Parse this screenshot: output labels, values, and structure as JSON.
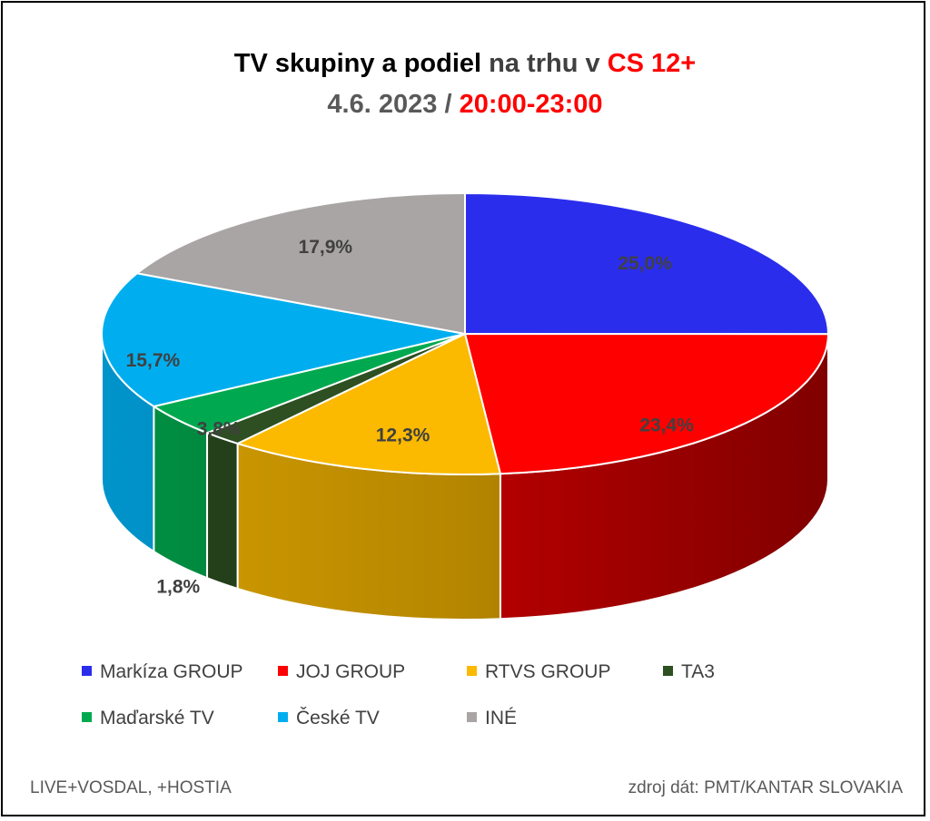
{
  "title": {
    "part1": "TV skupiny a podiel",
    "part2": "na trhu v",
    "part3": "CS 12+",
    "date": "4.6. 2023",
    "sep": "/",
    "time": "20:00-23:00"
  },
  "footer": {
    "left": "LIVE+VOSDAL, +HOSTIA",
    "right": "zdroj dát: PMT/KANTAR SLOVAKIA"
  },
  "chart_data": {
    "type": "pie",
    "style": "3d",
    "categories": [
      "Markíza GROUP",
      "JOJ GROUP",
      "RTVS GROUP",
      "TA3",
      "Maďarské  TV",
      "České  TV",
      "INÉ"
    ],
    "values": [
      25.0,
      23.4,
      12.3,
      1.8,
      3.8,
      15.7,
      17.9
    ],
    "data_labels": [
      "25,0%",
      "23,4%",
      "12,3%",
      "1,8%",
      "3,8%",
      "15,7%",
      "17,9%"
    ],
    "colors": [
      "#2b2ded",
      "#ff0000",
      "#fbba00",
      "#2d4f21",
      "#00a94f",
      "#00aeef",
      "#a9a5a5"
    ],
    "legend_position": "bottom"
  }
}
